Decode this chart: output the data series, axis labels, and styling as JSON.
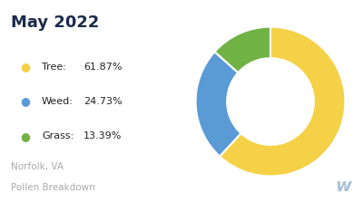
{
  "title": "May 2022",
  "subtitle_line1": "Norfolk, VA",
  "subtitle_line2": "Pollen Breakdown",
  "categories": [
    "Tree",
    "Weed",
    "Grass"
  ],
  "values": [
    61.87,
    24.73,
    13.39
  ],
  "colors": [
    "#F5D147",
    "#5B9BD5",
    "#70B244"
  ],
  "labels": [
    "61.87%",
    "24.73%",
    "13.39%"
  ],
  "title_color": "#1B2B4B",
  "subtitle_color": "#AAAAAA",
  "legend_color": "#222222",
  "background_color": "#FFFFFF",
  "watermark_color": "#9DB8D2",
  "donut_width": 0.42
}
